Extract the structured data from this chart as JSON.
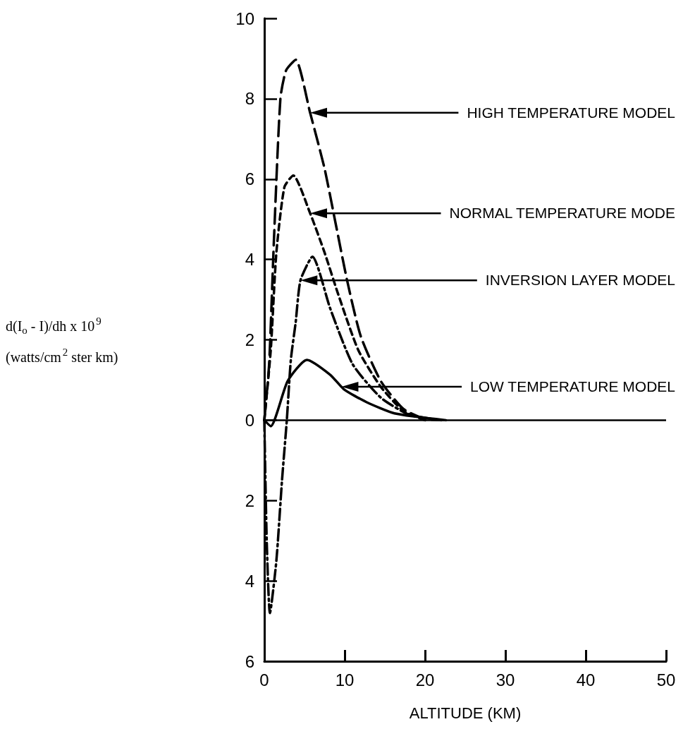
{
  "chart_data": {
    "type": "line",
    "xlabel": "ALTITUDE (KM)",
    "ylabel": "d(I$_{o}$ - I)/dh x 10$^{9}$ (watts/cm$^{2}$ ster km)",
    "xlim": [
      0,
      50
    ],
    "xticks": [
      0,
      10,
      20,
      30,
      40,
      50
    ],
    "ylim": [
      -6,
      10
    ],
    "yticks": [
      {
        "value": -6,
        "label": "6"
      },
      {
        "value": -4,
        "label": "4"
      },
      {
        "value": -2,
        "label": "2"
      },
      0,
      2,
      4,
      6,
      8,
      10
    ],
    "grid": false,
    "marker": "none",
    "ref_lines": [
      {
        "axis": "y",
        "value": 0,
        "color": "#000000",
        "line_style": "solid"
      }
    ],
    "series": [
      {
        "color": "#000000",
        "line_style": "dashed",
        "x": [
          0,
          0.6,
          1.2,
          2.0,
          2.7,
          3.9,
          5.7,
          7.5,
          8.9,
          10.3,
          12,
          14.5,
          17.3,
          20,
          22
        ],
        "values": [
          0,
          1.4,
          4.5,
          8.0,
          8.7,
          8.97,
          7.65,
          6.26,
          4.87,
          3.48,
          2.09,
          0.97,
          0.28,
          0.03,
          0
        ]
      },
      {
        "color": "#000000",
        "line_style": "dashed",
        "x": [
          0,
          0.8,
          1.5,
          2.5,
          3.6,
          5.7,
          7.5,
          9.2,
          11.7,
          14.5,
          17.3,
          20
        ],
        "values": [
          0,
          1.74,
          4.17,
          5.8,
          6.09,
          5.15,
          4.17,
          3.13,
          1.74,
          0.83,
          0.23,
          0
        ]
      },
      {
        "color": "#000000",
        "line_style": "dashed",
        "x": [
          0,
          0.3,
          0.7,
          1.5,
          2.2,
          2.8,
          3.3,
          3.9,
          4.5,
          6.0,
          8.2,
          11,
          14.5,
          18,
          22
        ],
        "values": [
          0,
          -3,
          -4.8,
          -3.5,
          -1.5,
          0,
          1.5,
          2.43,
          3.48,
          4.07,
          2.78,
          1.39,
          0.56,
          0.14,
          0
        ]
      },
      {
        "color": "#000000",
        "line_style": "solid",
        "x": [
          0,
          0.8,
          2.9,
          5.3,
          8.2,
          9.9,
          12.7,
          16.2,
          22.6
        ],
        "values": [
          0,
          -0.15,
          0.97,
          1.5,
          1.13,
          0.77,
          0.45,
          0.17,
          0
        ]
      }
    ],
    "annotations": [
      "HIGH TEMPERATURE MODEL",
      "NORMAL TEMPERATURE MODE",
      "INVERSION LAYER MODEL",
      "LOW TEMPERATURE MODEL"
    ]
  }
}
